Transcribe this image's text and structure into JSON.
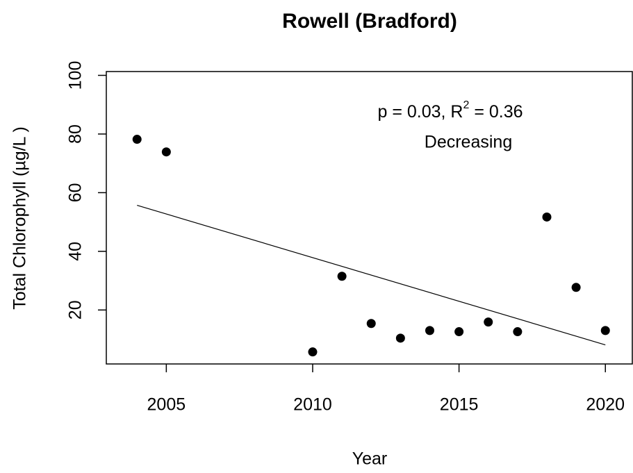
{
  "chart_data": {
    "type": "scatter",
    "title": "Rowell (Bradford)",
    "x_label": "Year",
    "y_label": "Total Chlorophyll (µg/L )",
    "x": [
      2004,
      2005,
      2010,
      2011,
      2012,
      2013,
      2014,
      2015,
      2016,
      2017,
      2018,
      2019,
      2020
    ],
    "values": [
      78.2,
      73.9,
      5.7,
      31.5,
      15.4,
      10.4,
      13.0,
      12.6,
      15.9,
      12.6,
      51.7,
      27.7,
      13.0
    ],
    "color": "#000000",
    "trend": {
      "x": [
        2004,
        2020
      ],
      "values": [
        55.7,
        8.1
      ]
    },
    "annotation": {
      "stat_prefix": "p = 0.03, R",
      "stat_superscript": "2",
      "stat_suffix": " = 0.36",
      "trend_label": "Decreasing"
    },
    "xlim": [
      2002.95,
      2020.92
    ],
    "ylim": [
      1.6,
      101.3
    ],
    "xticks": [
      2005,
      2010,
      2015,
      2020
    ],
    "yticks": [
      20,
      40,
      60,
      80,
      100
    ]
  }
}
